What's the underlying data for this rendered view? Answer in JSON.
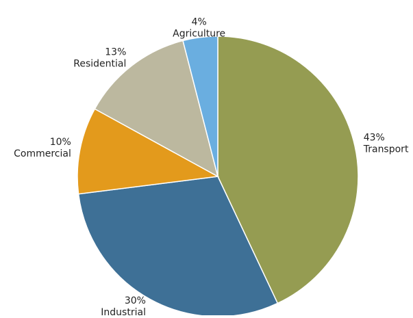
{
  "chart_data": {
    "type": "pie",
    "categories": [
      "Transport",
      "Industrial",
      "Commercial",
      "Residential",
      "Agriculture"
    ],
    "values": [
      43,
      30,
      10,
      13,
      4
    ],
    "value_labels": [
      "43%",
      "30%",
      "10%",
      "13%",
      "4%"
    ],
    "colors": [
      "#959c52",
      "#3e7096",
      "#e39a1c",
      "#bcb89f",
      "#6aaee0"
    ]
  }
}
